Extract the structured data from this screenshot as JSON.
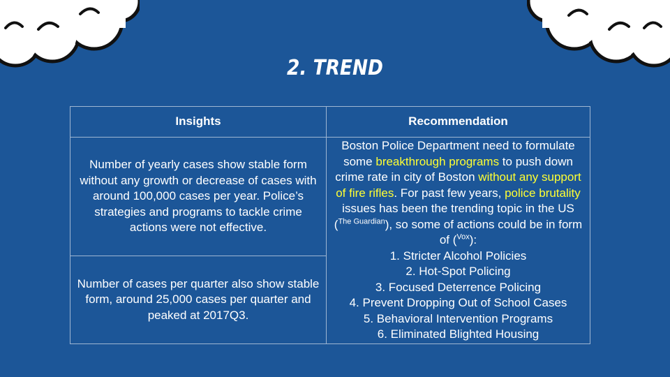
{
  "slide": {
    "title": "2. Trend"
  },
  "table": {
    "headers": {
      "insights": "Insights",
      "recommendation": "Recommendation"
    },
    "insights": [
      "Number of yearly cases show stable form without any growth or decrease of cases with around 100,000 cases per year. Police’s strategies and programs to tackle crime actions were not effective.",
      "Number of cases per quarter also show stable form, around 25,000 cases per quarter and peaked at 2017Q3."
    ],
    "recommendation": {
      "part1": "Boston Police Department need to formulate some ",
      "hl1": "breakthrough programs",
      "part2": " to push down crime rate in city of Boston ",
      "hl2": "without any support of fire rifles",
      "part3": ". For past few years, ",
      "hl3": "police brutality",
      "part4": " issues has been the trending topic in the US (",
      "source1": "The Guardian",
      "part5": "), so some of actions could be in form of (",
      "source2": "Vox",
      "part6": "):",
      "actions": [
        "1. Stricter Alcohol Policies",
        "2. Hot-Spot Policing",
        "3. Focused Deterrence Policing",
        "4. Prevent Dropping Out of School Cases",
        "5. Behavioral Intervention Programs",
        "6. Eliminated Blighted Housing"
      ]
    }
  },
  "colors": {
    "background": "#1c5698",
    "highlight": "#ffff33",
    "text": "#ffffff",
    "border": "#9fb6d2"
  },
  "decorations": [
    "cloud-left-icon",
    "cloud-right-icon"
  ]
}
